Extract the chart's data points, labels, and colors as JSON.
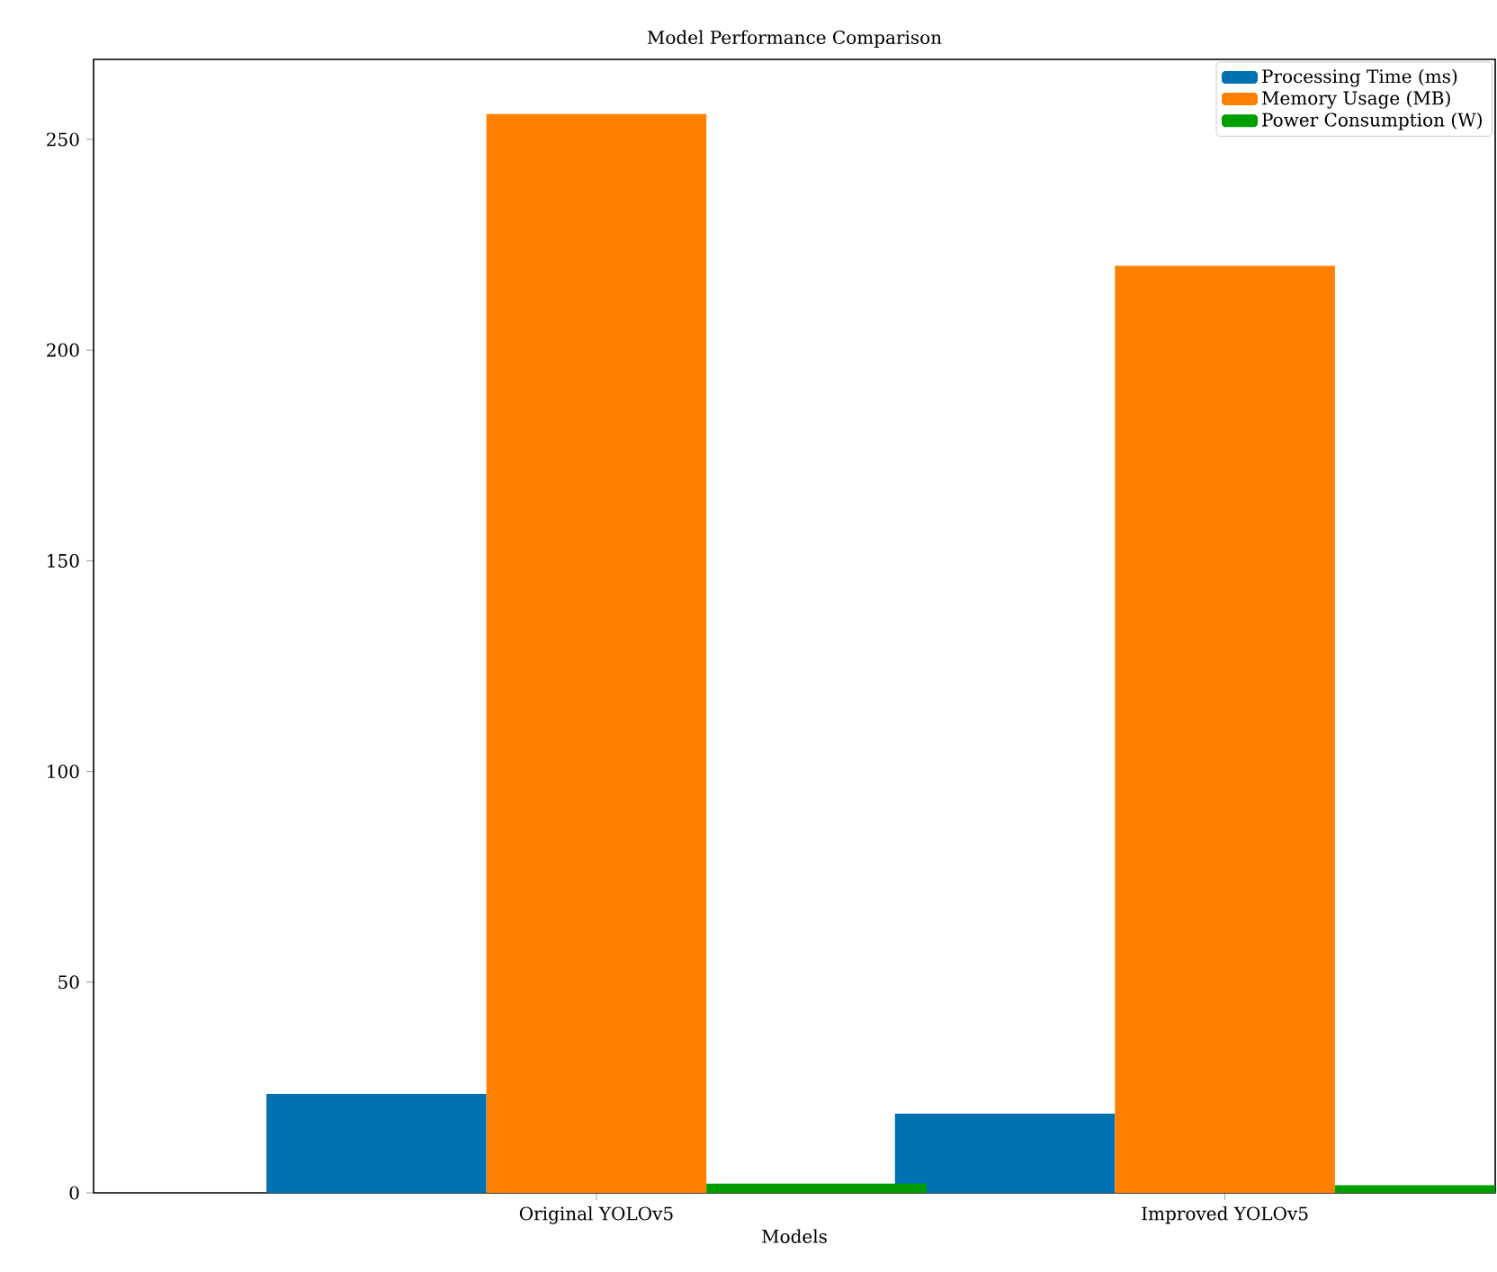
{
  "chart_data": {
    "type": "bar",
    "title": "Model Performance Comparison",
    "xlabel": "Models",
    "categories": [
      "Original YOLOv5",
      "Improved YOLOv5"
    ],
    "series": [
      {
        "name": "Processing Time (ms)",
        "color": "#0072b2",
        "values": [
          23.5,
          18.8
        ]
      },
      {
        "name": "Memory Usage (MB)",
        "color": "#ff7f00",
        "values": [
          256,
          220
        ]
      },
      {
        "name": "Power Consumption (W)",
        "color": "#009e00",
        "values": [
          2.2,
          1.8
        ]
      }
    ],
    "ylim": [
      0,
      269
    ],
    "yticks": [
      0,
      50,
      100,
      150,
      200,
      250
    ],
    "grid": false,
    "legend": "top right"
  }
}
